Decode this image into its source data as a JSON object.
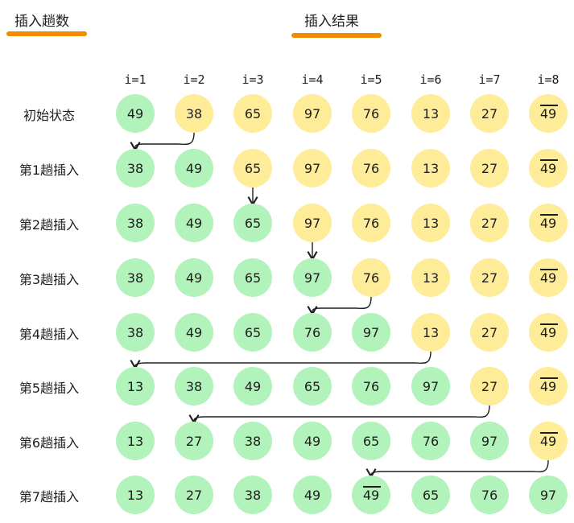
{
  "headers": {
    "left": "插入趟数",
    "right": "插入结果"
  },
  "columns": [
    "i=1",
    "i=2",
    "i=3",
    "i=4",
    "i=5",
    "i=6",
    "i=7",
    "i=8"
  ],
  "rows": [
    {
      "label": "初始状态",
      "values": [
        "49",
        "38",
        "65",
        "97",
        "76",
        "13",
        "27",
        "49"
      ],
      "sorted_count": 1,
      "bar_index": 7
    },
    {
      "label": "第1趟插入",
      "values": [
        "38",
        "49",
        "65",
        "97",
        "76",
        "13",
        "27",
        "49"
      ],
      "sorted_count": 2,
      "bar_index": 7
    },
    {
      "label": "第2趟插入",
      "values": [
        "38",
        "49",
        "65",
        "97",
        "76",
        "13",
        "27",
        "49"
      ],
      "sorted_count": 3,
      "bar_index": 7
    },
    {
      "label": "第3趟插入",
      "values": [
        "38",
        "49",
        "65",
        "97",
        "76",
        "13",
        "27",
        "49"
      ],
      "sorted_count": 4,
      "bar_index": 7
    },
    {
      "label": "第4趟插入",
      "values": [
        "38",
        "49",
        "65",
        "76",
        "97",
        "13",
        "27",
        "49"
      ],
      "sorted_count": 5,
      "bar_index": 7
    },
    {
      "label": "第5趟插入",
      "values": [
        "13",
        "38",
        "49",
        "65",
        "76",
        "97",
        "27",
        "49"
      ],
      "sorted_count": 6,
      "bar_index": 7
    },
    {
      "label": "第6趟插入",
      "values": [
        "13",
        "27",
        "38",
        "49",
        "65",
        "76",
        "97",
        "49"
      ],
      "sorted_count": 7,
      "bar_index": 7
    },
    {
      "label": "第7趟插入",
      "values": [
        "13",
        "27",
        "38",
        "49",
        "49",
        "65",
        "76",
        "97"
      ],
      "sorted_count": 8,
      "bar_index": 4
    }
  ],
  "moves": [
    {
      "from_row": 0,
      "from_col": 1,
      "to_col": 0
    },
    {
      "from_row": 1,
      "from_col": 2,
      "to_col": 2
    },
    {
      "from_row": 2,
      "from_col": 3,
      "to_col": 3
    },
    {
      "from_row": 3,
      "from_col": 4,
      "to_col": 3
    },
    {
      "from_row": 4,
      "from_col": 5,
      "to_col": 0
    },
    {
      "from_row": 5,
      "from_col": 6,
      "to_col": 1
    },
    {
      "from_row": 6,
      "from_col": 7,
      "to_col": 4
    }
  ],
  "colors": {
    "sorted": "#b2f2bb",
    "unsorted": "#ffec99",
    "accent": "#f08c00"
  }
}
